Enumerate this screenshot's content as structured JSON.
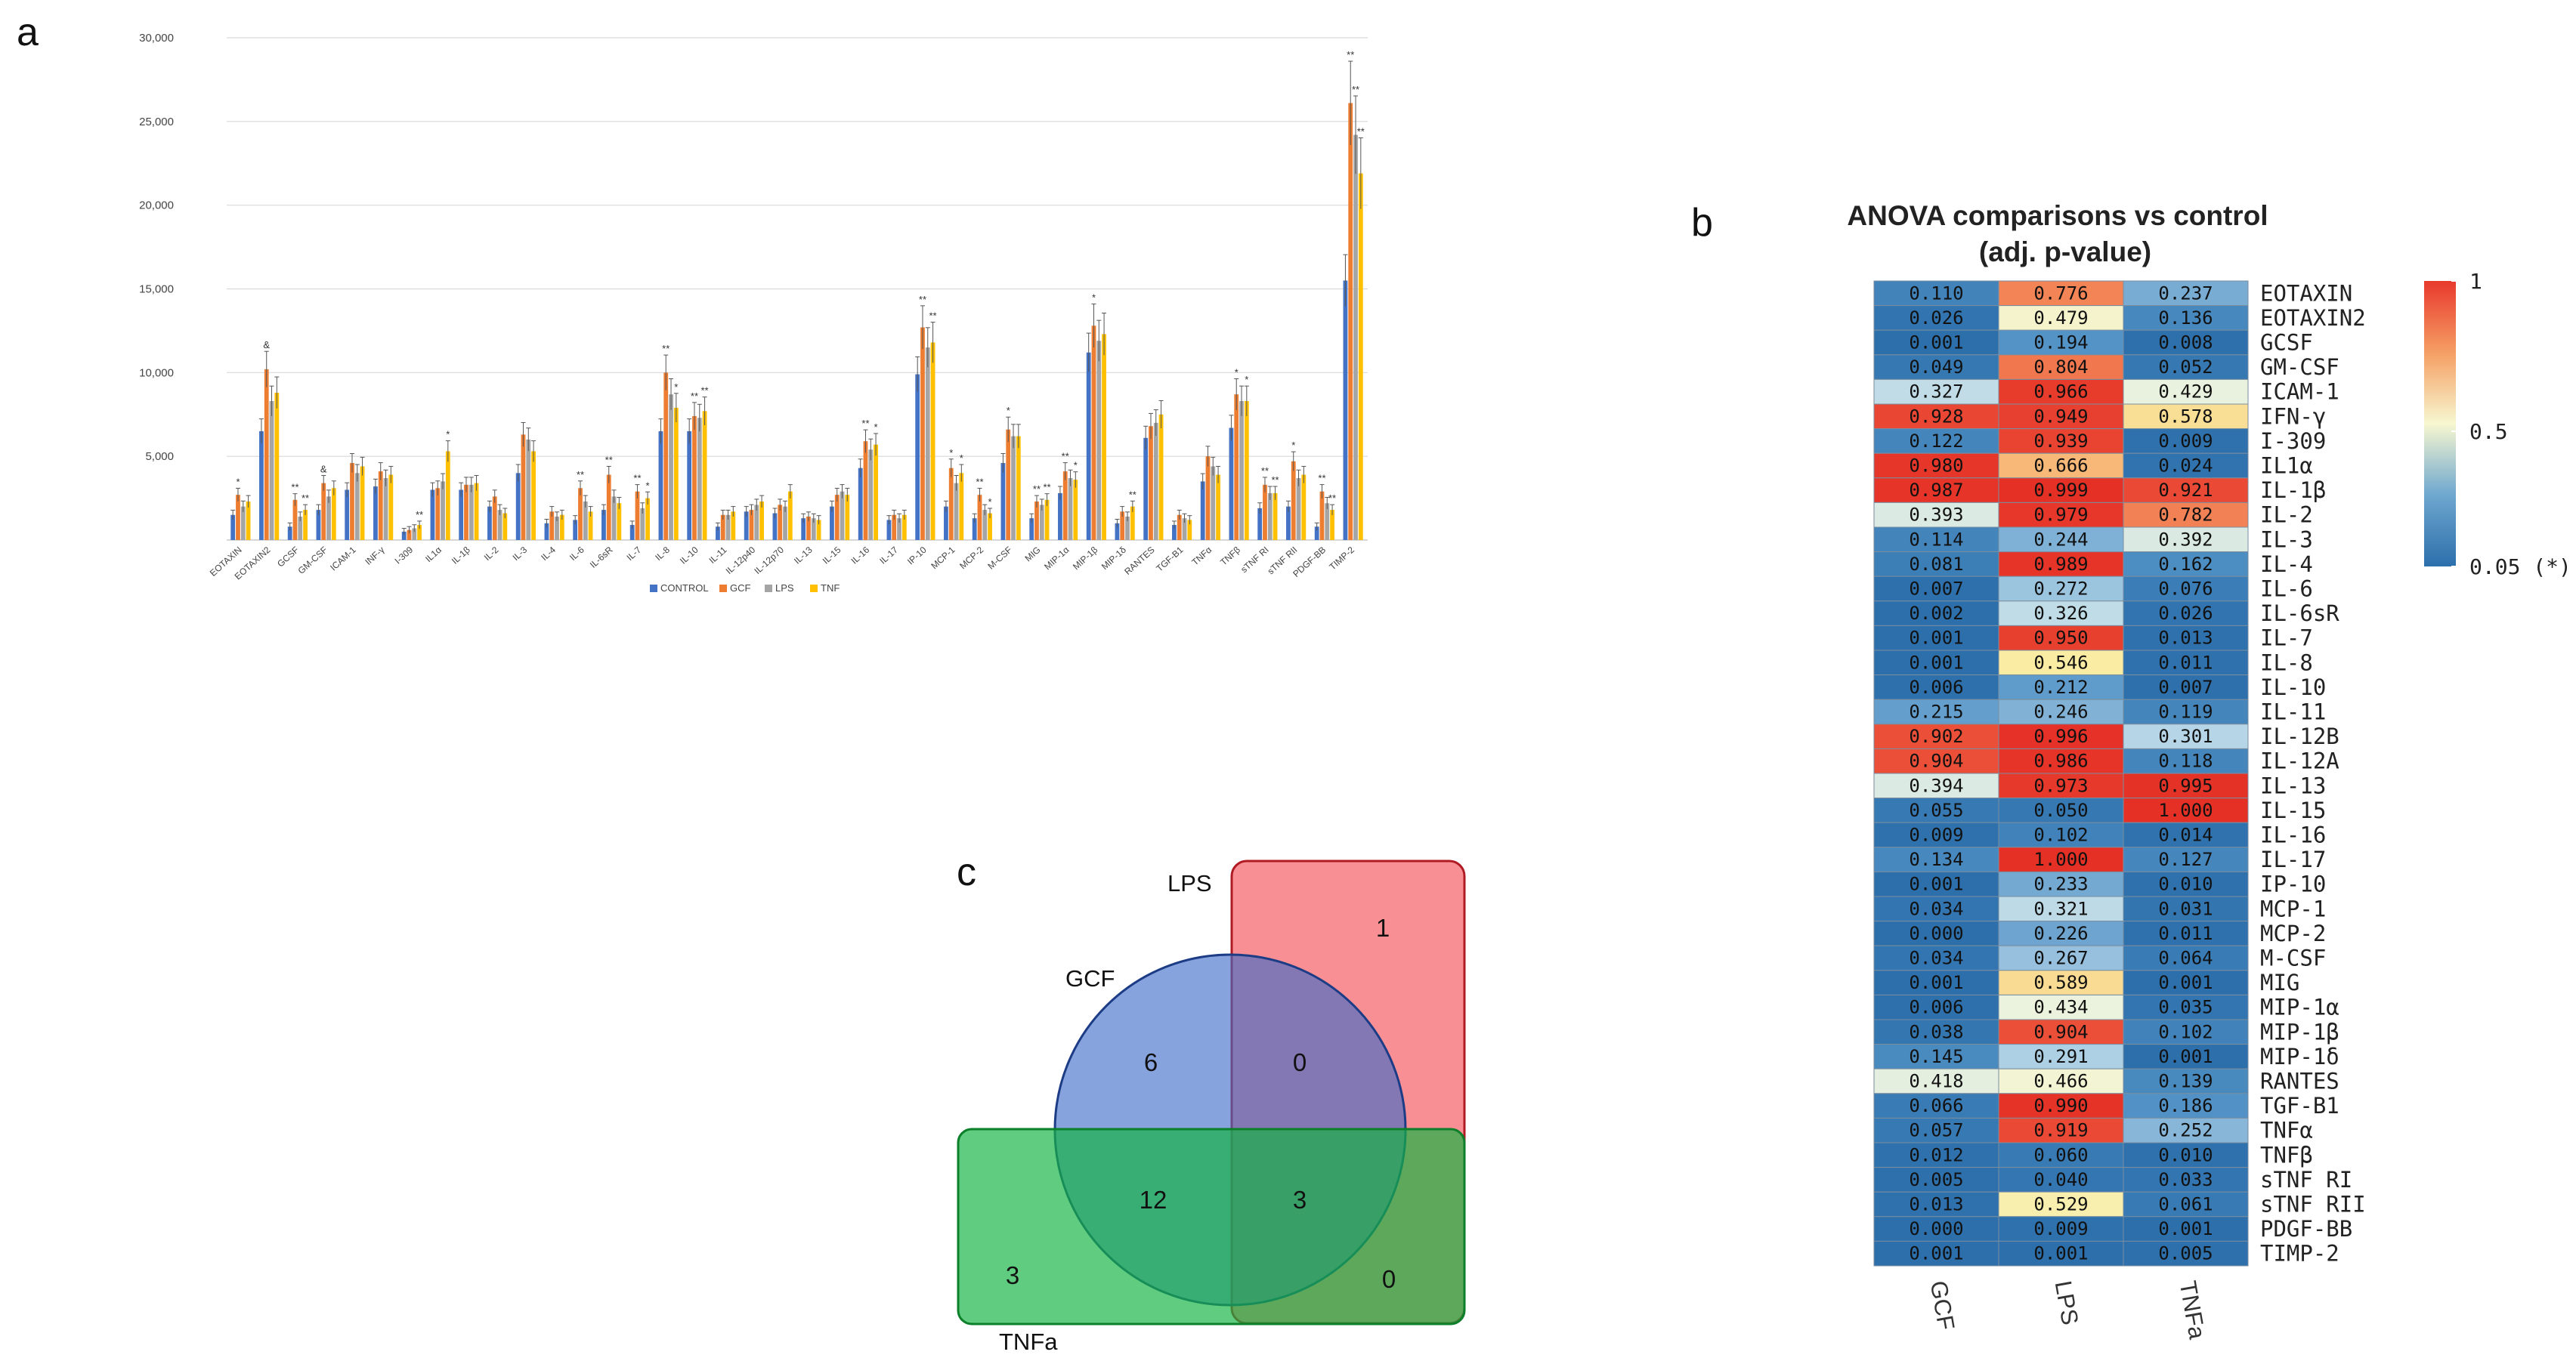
{
  "panels": {
    "a": "a",
    "b": "b",
    "c": "c"
  },
  "colors": {
    "control": "#4472C4",
    "gcf": "#ED7D31",
    "lps": "#A5A5A5",
    "tnf": "#FFC000"
  },
  "chart_data": [
    {
      "type": "bar",
      "panel": "a",
      "title": "",
      "xlabel": "",
      "ylabel": "",
      "ylim": [
        0,
        30000
      ],
      "yticks": [
        5000,
        10000,
        15000,
        20000,
        25000,
        30000
      ],
      "ytick_labels": [
        "5,000",
        "10,000",
        "15,000",
        "20,000",
        "25,000",
        "30,000"
      ],
      "grid": true,
      "legend_position": "bottom-center",
      "categories": [
        "EOTAXIN",
        "EOTAXIN2",
        "GCSF",
        "GM-CSF",
        "ICAM-1",
        "INF-γ",
        "I-309",
        "IL1α",
        "IL-1β",
        "IL-2",
        "IL-3",
        "IL-4",
        "IL-6",
        "IL-6sR",
        "IL-7",
        "IL-8",
        "IL-10",
        "IL-11",
        "IL-12p40",
        "IL-12p70",
        "IL-13",
        "IL-15",
        "IL-16",
        "IL-17",
        "IP-10",
        "MCP-1",
        "MCP-2",
        "M-CSF",
        "MIG",
        "MIP-1α",
        "MIP-1β",
        "MIP-1δ",
        "RANTES",
        "TGF-B1",
        "TNFα",
        "TNFβ",
        "sTNF RI",
        "sTNF RII",
        "PDGF-BB",
        "TIMP-2"
      ],
      "series": [
        {
          "name": "CONTROL",
          "values": [
            1500,
            6500,
            800,
            1800,
            3000,
            3200,
            500,
            3000,
            3000,
            2000,
            4000,
            1000,
            1200,
            1800,
            900,
            6500,
            6500,
            800,
            1700,
            1600,
            1300,
            2000,
            4300,
            1200,
            9900,
            2000,
            1300,
            4600,
            1300,
            2800,
            11200,
            1000,
            6100,
            900,
            3500,
            6700,
            1900,
            2000,
            800,
            15500
          ]
        },
        {
          "name": "GCF",
          "values": [
            2700,
            10200,
            2400,
            3400,
            4600,
            4100,
            600,
            3100,
            3300,
            2600,
            6300,
            1700,
            3100,
            3900,
            2900,
            10000,
            7400,
            1500,
            1800,
            2100,
            1400,
            2700,
            5900,
            1500,
            12700,
            4300,
            2700,
            6600,
            2300,
            4100,
            12800,
            1700,
            6800,
            1500,
            5000,
            8700,
            3300,
            4700,
            2900,
            26100
          ]
        },
        {
          "name": "LPS",
          "values": [
            2000,
            8300,
            1400,
            2600,
            4000,
            3700,
            700,
            3500,
            3300,
            1800,
            6000,
            1400,
            2300,
            2600,
            1900,
            8700,
            7300,
            1500,
            2100,
            2000,
            1300,
            2900,
            5400,
            1300,
            11500,
            3400,
            1800,
            6200,
            2100,
            3700,
            11900,
            1400,
            7000,
            1300,
            4400,
            8300,
            2800,
            3700,
            2200,
            24200
          ]
        },
        {
          "name": "TNF",
          "values": [
            2300,
            8800,
            1800,
            3100,
            4400,
            3900,
            900,
            5300,
            3400,
            1600,
            5300,
            1500,
            1700,
            2200,
            2500,
            7900,
            7700,
            1700,
            2300,
            2900,
            1200,
            2700,
            5700,
            1500,
            11800,
            4000,
            1600,
            6200,
            2400,
            3600,
            12300,
            2000,
            7500,
            1200,
            3900,
            8300,
            2800,
            3900,
            1800,
            21900
          ]
        }
      ],
      "annotations": [
        {
          "category": "EOTAXIN",
          "series": "GCF",
          "text": "*"
        },
        {
          "category": "EOTAXIN2",
          "series": "GCF",
          "text": "&"
        },
        {
          "category": "GCSF",
          "series": "GCF",
          "text": "**"
        },
        {
          "category": "GCSF",
          "series": "TNF",
          "text": "**"
        },
        {
          "category": "GM-CSF",
          "series": "GCF",
          "text": "&"
        },
        {
          "category": "I-309",
          "series": "TNF",
          "text": "**"
        },
        {
          "category": "IL1α",
          "series": "TNF",
          "text": "*"
        },
        {
          "category": "IL-6",
          "series": "GCF",
          "text": "**"
        },
        {
          "category": "IL-6sR",
          "series": "GCF",
          "text": "**"
        },
        {
          "category": "IL-7",
          "series": "GCF",
          "text": "**"
        },
        {
          "category": "IL-7",
          "series": "TNF",
          "text": "*"
        },
        {
          "category": "IL-8",
          "series": "GCF",
          "text": "**"
        },
        {
          "category": "IL-8",
          "series": "TNF",
          "text": "*"
        },
        {
          "category": "IL-10",
          "series": "GCF",
          "text": "**"
        },
        {
          "category": "IL-10",
          "series": "TNF",
          "text": "**"
        },
        {
          "category": "IL-16",
          "series": "GCF",
          "text": "**"
        },
        {
          "category": "IL-16",
          "series": "TNF",
          "text": "*"
        },
        {
          "category": "IP-10",
          "series": "GCF",
          "text": "**"
        },
        {
          "category": "IP-10",
          "series": "TNF",
          "text": "**"
        },
        {
          "category": "MCP-1",
          "series": "GCF",
          "text": "*"
        },
        {
          "category": "MCP-1",
          "series": "TNF",
          "text": "*"
        },
        {
          "category": "MCP-2",
          "series": "GCF",
          "text": "**"
        },
        {
          "category": "MCP-2",
          "series": "TNF",
          "text": "*"
        },
        {
          "category": "M-CSF",
          "series": "GCF",
          "text": "*"
        },
        {
          "category": "MIG",
          "series": "GCF",
          "text": "**"
        },
        {
          "category": "MIG",
          "series": "TNF",
          "text": "**"
        },
        {
          "category": "MIP-1α",
          "series": "GCF",
          "text": "**"
        },
        {
          "category": "MIP-1α",
          "series": "TNF",
          "text": "*"
        },
        {
          "category": "MIP-1β",
          "series": "GCF",
          "text": "*"
        },
        {
          "category": "MIP-1δ",
          "series": "TNF",
          "text": "**"
        },
        {
          "category": "TNFβ",
          "series": "GCF",
          "text": "*"
        },
        {
          "category": "TNFβ",
          "series": "TNF",
          "text": "*"
        },
        {
          "category": "sTNF RI",
          "series": "GCF",
          "text": "**"
        },
        {
          "category": "sTNF RI",
          "series": "TNF",
          "text": "**"
        },
        {
          "category": "sTNF RII",
          "series": "GCF",
          "text": "*"
        },
        {
          "category": "PDGF-BB",
          "series": "GCF",
          "text": "**"
        },
        {
          "category": "PDGF-BB",
          "series": "TNF",
          "text": "**"
        },
        {
          "category": "TIMP-2",
          "series": "GCF",
          "text": "**"
        },
        {
          "category": "TIMP-2",
          "series": "LPS",
          "text": "**"
        },
        {
          "category": "TIMP-2",
          "series": "TNF",
          "text": "**"
        }
      ]
    },
    {
      "type": "heatmap",
      "panel": "b",
      "title": "ANOVA comparisons vs control",
      "subtitle": "(adj. p-value)",
      "columns": [
        "GCF",
        "LPS",
        "TNFa"
      ],
      "rows": [
        "EOTAXIN",
        "EOTAXIN2",
        "GCSF",
        "GM-CSF",
        "ICAM-1",
        "IFN-γ",
        "I-309",
        "IL1α",
        "IL-1β",
        "IL-2",
        "IL-3",
        "IL-4",
        "IL-6",
        "IL-6sR",
        "IL-7",
        "IL-8",
        "IL-10",
        "IL-11",
        "IL-12B",
        "IL-12A",
        "IL-13",
        "IL-15",
        "IL-16",
        "IL-17",
        "IP-10",
        "MCP-1",
        "MCP-2",
        "M-CSF",
        "MIG",
        "MIP-1α",
        "MIP-1β",
        "MIP-1δ",
        "RANTES",
        "TGF-B1",
        "TNFα",
        "TNFβ",
        "sTNF RI",
        "sTNF RII",
        "PDGF-BB",
        "TIMP-2"
      ],
      "values": [
        [
          "0.110",
          "0.776",
          "0.237"
        ],
        [
          "0.026",
          "0.479",
          "0.136"
        ],
        [
          "0.001",
          "0.194",
          "0.008"
        ],
        [
          "0.049",
          "0.804",
          "0.052"
        ],
        [
          "0.327",
          "0.966",
          "0.429"
        ],
        [
          "0.928",
          "0.949",
          "0.578"
        ],
        [
          "0.122",
          "0.939",
          "0.009"
        ],
        [
          "0.980",
          "0.666",
          "0.024"
        ],
        [
          "0.987",
          "0.999",
          "0.921"
        ],
        [
          "0.393",
          "0.979",
          "0.782"
        ],
        [
          "0.114",
          "0.244",
          "0.392"
        ],
        [
          "0.081",
          "0.989",
          "0.162"
        ],
        [
          "0.007",
          "0.272",
          "0.076"
        ],
        [
          "0.002",
          "0.326",
          "0.026"
        ],
        [
          "0.001",
          "0.950",
          "0.013"
        ],
        [
          "0.001",
          "0.546",
          "0.011"
        ],
        [
          "0.006",
          "0.212",
          "0.007"
        ],
        [
          "0.215",
          "0.246",
          "0.119"
        ],
        [
          "0.902",
          "0.996",
          "0.301"
        ],
        [
          "0.904",
          "0.986",
          "0.118"
        ],
        [
          "0.394",
          "0.973",
          "0.995"
        ],
        [
          "0.055",
          "0.050",
          "1.000"
        ],
        [
          "0.009",
          "0.102",
          "0.014"
        ],
        [
          "0.134",
          "1.000",
          "0.127"
        ],
        [
          "0.001",
          "0.233",
          "0.010"
        ],
        [
          "0.034",
          "0.321",
          "0.031"
        ],
        [
          "0.000",
          "0.226",
          "0.011"
        ],
        [
          "0.034",
          "0.267",
          "0.064"
        ],
        [
          "0.001",
          "0.589",
          "0.001"
        ],
        [
          "0.006",
          "0.434",
          "0.035"
        ],
        [
          "0.038",
          "0.904",
          "0.102"
        ],
        [
          "0.145",
          "0.291",
          "0.001"
        ],
        [
          "0.418",
          "0.466",
          "0.139"
        ],
        [
          "0.066",
          "0.990",
          "0.186"
        ],
        [
          "0.057",
          "0.919",
          "0.252"
        ],
        [
          "0.012",
          "0.060",
          "0.010"
        ],
        [
          "0.005",
          "0.040",
          "0.033"
        ],
        [
          "0.013",
          "0.529",
          "0.061"
        ],
        [
          "0.000",
          "0.009",
          "0.001"
        ],
        [
          "0.001",
          "0.001",
          "0.005"
        ]
      ],
      "colorbar": {
        "labels": [
          "1",
          "0.5",
          "0.05 (*)"
        ],
        "values": [
          1,
          0.5,
          0.05
        ]
      }
    },
    {
      "type": "venn",
      "panel": "c",
      "sets": [
        "LPS",
        "GCF",
        "TNFa"
      ],
      "regions": {
        "lps_only": "1",
        "gcf_only": "6",
        "tnfa_only": "3",
        "gcf_lps": "0",
        "gcf_tnfa": "12",
        "gcf_lps_tnfa": "3",
        "lps_tnfa": "0"
      }
    }
  ]
}
